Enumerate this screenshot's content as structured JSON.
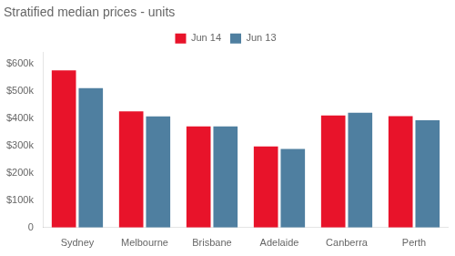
{
  "chart_data": {
    "type": "bar",
    "title": "Stratified median prices - units",
    "categories": [
      "Sydney",
      "Melbourne",
      "Brisbane",
      "Adelaide",
      "Canberra",
      "Perth"
    ],
    "series": [
      {
        "name": "Jun 14",
        "color": "#e8132a",
        "values": [
          575000,
          425000,
          370000,
          297000,
          410000,
          408000
        ]
      },
      {
        "name": "Jun 13",
        "color": "#4f7fa0",
        "values": [
          510000,
          407000,
          370000,
          288000,
          420000,
          393000
        ]
      }
    ],
    "ylim": [
      0,
      640000
    ],
    "yticks": [
      0,
      {
        "value": 100000,
        "label": "$100k"
      },
      {
        "value": 200000,
        "label": "$200k"
      },
      {
        "value": 300000,
        "label": "$300k"
      },
      {
        "value": 400000,
        "label": "$400k"
      },
      {
        "value": 500000,
        "label": "$500k"
      },
      {
        "value": 600000,
        "label": "$600k"
      }
    ],
    "grid": false,
    "legend": "top"
  }
}
